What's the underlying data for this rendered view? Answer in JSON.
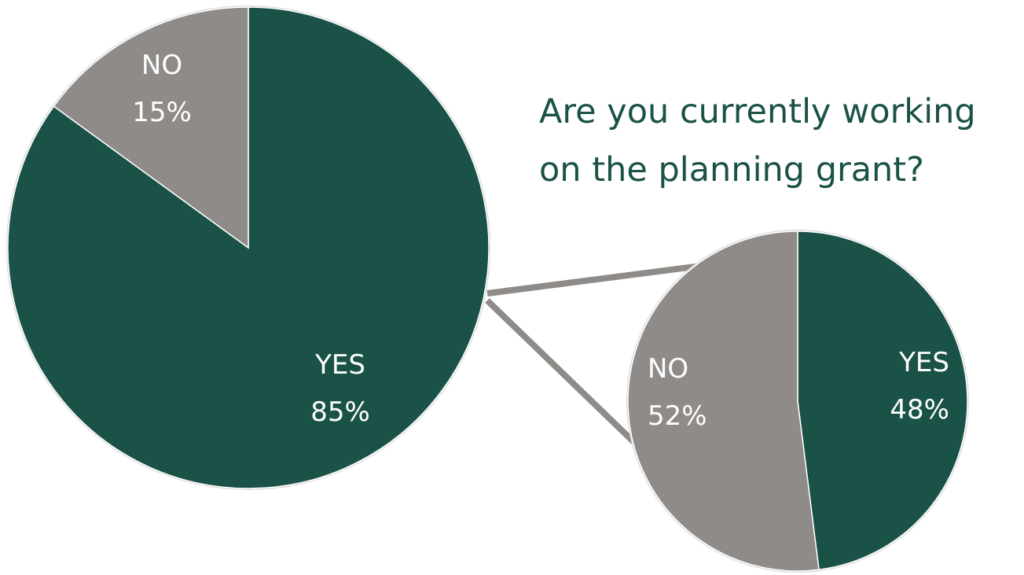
{
  "colors": {
    "yes": "#1a5247",
    "no": "#8f8b88",
    "connector": "#8f8b88",
    "outline": "#d9d9d9",
    "title": "#1a5247"
  },
  "title": {
    "line1": "Are you currently working",
    "line2": "on the planning grant?"
  },
  "chart_data": [
    {
      "type": "pie",
      "slices": [
        {
          "label": "YES",
          "value": 85,
          "value_label": "85%",
          "color": "#1a5247"
        },
        {
          "label": "NO",
          "value": 15,
          "value_label": "15%",
          "color": "#8f8b88"
        }
      ]
    },
    {
      "type": "pie",
      "title": "Are you currently working on the planning grant?",
      "slices": [
        {
          "label": "YES",
          "value": 48,
          "value_label": "48%",
          "color": "#1a5247"
        },
        {
          "label": "NO",
          "value": 52,
          "value_label": "52%",
          "color": "#8f8b88"
        }
      ]
    }
  ]
}
